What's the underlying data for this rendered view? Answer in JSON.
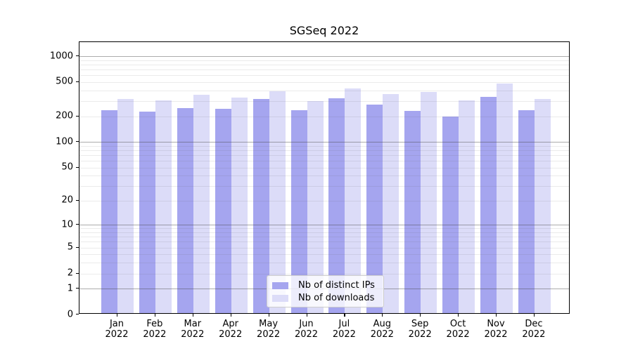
{
  "title": "SGSeq 2022",
  "chart_data": {
    "type": "bar",
    "title": "SGSeq 2022",
    "x_axis": {
      "months": [
        "Jan",
        "Feb",
        "Mar",
        "Apr",
        "May",
        "Jun",
        "Jul",
        "Aug",
        "Sep",
        "Oct",
        "Nov",
        "Dec"
      ],
      "year": "2022"
    },
    "y_axis": {
      "scale": "log10(1+x)",
      "ticks": [
        0,
        1,
        2,
        5,
        10,
        20,
        50,
        100,
        200,
        500,
        1000
      ],
      "minor_decades": [
        1,
        10,
        100
      ],
      "ylim": [
        0,
        1458
      ]
    },
    "series": [
      {
        "name": "Nb of distinct IPs",
        "color": "#a5a5ef",
        "values": [
          225,
          218,
          240,
          236,
          308,
          226,
          313,
          264,
          224,
          192,
          326,
          228
        ]
      },
      {
        "name": "Nb of downloads",
        "color": "#dcdcf8",
        "values": [
          306,
          297,
          345,
          318,
          375,
          290,
          404,
          350,
          372,
          293,
          465,
          306
        ]
      }
    ],
    "legend": {
      "position": "lower center",
      "entries": [
        "Nb of distinct IPs",
        "Nb of downloads"
      ]
    },
    "grid": {
      "major_color": "rgba(70,70,70,0.45)",
      "minor_color": "rgba(100,100,100,0.13)"
    }
  }
}
